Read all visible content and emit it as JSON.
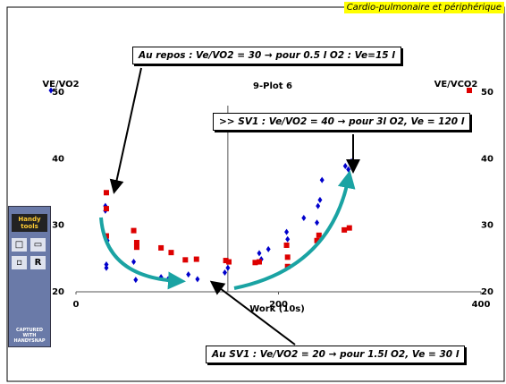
{
  "header": "Cardio-pulmonaire et périphérique",
  "widget": {
    "logo": "Handy tools",
    "button": "R",
    "caption": "CAPTURED WITH HANDYSNAP"
  },
  "chart_data": {
    "type": "scatter",
    "title": "9-Plot 6",
    "x_label": "Work  (10s)",
    "xlim": [
      0,
      400
    ],
    "xticks": [
      0,
      200,
      400
    ],
    "ylim": [
      20,
      50
    ],
    "yticks": [
      20,
      30,
      40,
      50
    ],
    "y2lim": [
      20,
      50
    ],
    "y2ticks": [
      20,
      30,
      40,
      50
    ],
    "vline": 150,
    "series": [
      {
        "name": "VE/VO2",
        "color": "#0000cc",
        "marker": "diamond",
        "x": [
          29,
          29,
          31,
          30,
          30,
          57,
          59,
          84,
          91,
          111,
          120,
          147,
          150,
          181,
          183,
          190,
          208,
          209,
          225,
          239,
          241,
          238,
          243,
          266,
          269,
          272
        ],
        "values": [
          32.9,
          32.2,
          27.7,
          24.1,
          23.6,
          24.5,
          21.8,
          22.2,
          21.9,
          22.6,
          21.9,
          22.9,
          23.6,
          25.8,
          24.9,
          26.4,
          29.0,
          27.9,
          31.1,
          32.9,
          33.8,
          30.4,
          36.8,
          38.9,
          38.4,
          39.6
        ]
      },
      {
        "name": "VE/VCO2",
        "color": "#dd0000",
        "marker": "square",
        "axis": "y2",
        "x": [
          30,
          30,
          30,
          57,
          60,
          60,
          84,
          94,
          108,
          119,
          148,
          151,
          177,
          181,
          209,
          209,
          208,
          238,
          240,
          265,
          270
        ],
        "values": [
          34.9,
          32.5,
          28.4,
          29.2,
          27.4,
          26.7,
          26.6,
          25.9,
          24.8,
          24.9,
          24.7,
          24.5,
          24.4,
          24.5,
          25.2,
          23.8,
          27.0,
          27.7,
          28.5,
          29.3,
          29.6
        ]
      }
    ],
    "annotations": [
      "Au repos : Ve/VO2 = 30 → pour 0.5 l O2 : Ve=15 l",
      ">> SV1 : Ve/VO2 = 40 → pour 3l O2, Ve = 120 l",
      "Au SV1 : Ve/VO2 = 20 → pour 1.5l O2, Ve = 30 l"
    ]
  }
}
